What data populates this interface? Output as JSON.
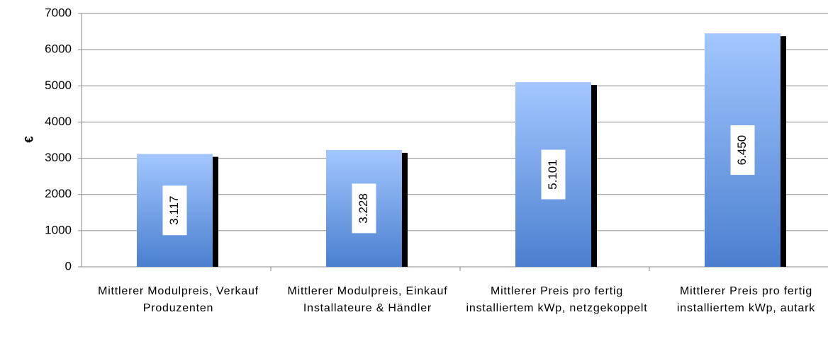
{
  "chart_data": {
    "type": "bar",
    "y_label": "€",
    "categories": [
      "Mittlerer Modulpreis, Verkauf Produzenten",
      "Mittlerer Modulpreis, Einkauf Installateure & Händler",
      "Mittlerer Preis pro fertig installiertem kWp, netzgekoppelt",
      "Mittlerer Preis pro fertig installiertem kWp, autark"
    ],
    "values": [
      3117,
      3228,
      5101,
      6450
    ],
    "value_labels": [
      "3.117",
      "3.228",
      "5.101",
      "6.450"
    ],
    "color": "#4a7fcf",
    "ylim": [
      0,
      7000
    ],
    "yticks": [
      0,
      1000,
      2000,
      3000,
      4000,
      5000,
      6000,
      7000
    ],
    "grid": true
  }
}
